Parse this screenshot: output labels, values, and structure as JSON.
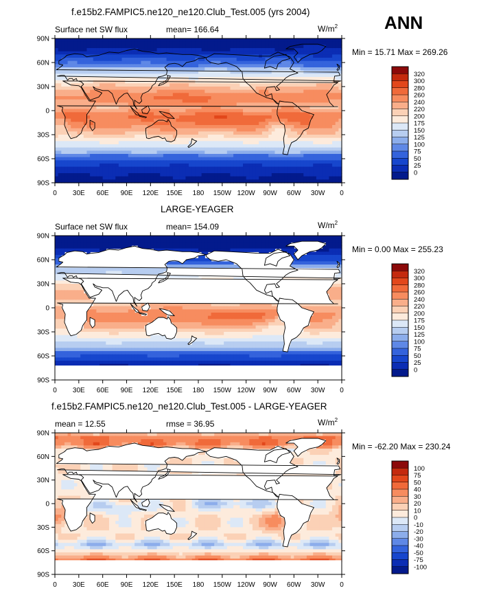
{
  "season_label": "ANN",
  "units_base": "W/m",
  "units_exp": "2",
  "lat_ticks": [
    "90N",
    "60N",
    "30N",
    "0",
    "30S",
    "60S",
    "90S"
  ],
  "lon_ticks": [
    "0",
    "30E",
    "60E",
    "90E",
    "120E",
    "150E",
    "180",
    "150W",
    "120W",
    "90W",
    "60W",
    "30W",
    "0"
  ],
  "chart_data": [
    {
      "type": "heatmap",
      "title": "f.e15b2.FAMPIC5.ne120_ne120.Club_Test.005 (yrs 2004)",
      "left_label": "Surface net SW flux",
      "center_label": "mean= 166.64",
      "min_max": "Min =   15.71 Max = 269.26",
      "colorbar_levels": [
        "320",
        "300",
        "280",
        "260",
        "240",
        "220",
        "200",
        "175",
        "150",
        "125",
        "100",
        "75",
        "50",
        "25",
        "0"
      ],
      "colorbar_colors": [
        "#8c0a0a",
        "#c42a0e",
        "#e2471b",
        "#f06a3a",
        "#f78c5f",
        "#f9ae8a",
        "#fbd1b6",
        "#fdebdc",
        "#dce8f7",
        "#b7cdf0",
        "#8cadeb",
        "#5f88e6",
        "#3463dc",
        "#1746cd",
        "#0b2db4",
        "#031a8c"
      ],
      "field": "surface_net_sw"
    },
    {
      "type": "heatmap",
      "title": "LARGE-YEAGER",
      "left_label": "Surface net SW flux",
      "center_label": "mean= 154.09",
      "min_max": "Min =    0.00 Max = 255.23",
      "colorbar_levels": [
        "320",
        "300",
        "280",
        "260",
        "240",
        "220",
        "200",
        "175",
        "150",
        "125",
        "100",
        "75",
        "50",
        "25",
        "0"
      ],
      "colorbar_colors": [
        "#8c0a0a",
        "#c42a0e",
        "#e2471b",
        "#f06a3a",
        "#f78c5f",
        "#f9ae8a",
        "#fbd1b6",
        "#fdebdc",
        "#dce8f7",
        "#b7cdf0",
        "#8cadeb",
        "#5f88e6",
        "#3463dc",
        "#1746cd",
        "#0b2db4",
        "#031a8c"
      ],
      "field": "surface_net_sw_obs"
    },
    {
      "type": "heatmap",
      "title": "f.e15b2.FAMPIC5.ne120_ne120.Club_Test.005 - LARGE-YEAGER",
      "left_label": "mean =   12.55",
      "center_label": "rmse =   36.95",
      "min_max": "Min = -62.20 Max = 230.24",
      "colorbar_levels": [
        "100",
        "75",
        "50",
        "40",
        "30",
        "20",
        "10",
        "0",
        "-10",
        "-20",
        "-30",
        "-40",
        "-50",
        "-75",
        "-100"
      ],
      "colorbar_colors": [
        "#8c0a0a",
        "#c42a0e",
        "#e2471b",
        "#f06a3a",
        "#f78c5f",
        "#f9ae8a",
        "#fbd1b6",
        "#fdebdc",
        "#dce8f7",
        "#b7cdf0",
        "#8cadeb",
        "#5f88e6",
        "#3463dc",
        "#1746cd",
        "#0b2db4",
        "#031a8c"
      ],
      "field": "difference"
    }
  ]
}
